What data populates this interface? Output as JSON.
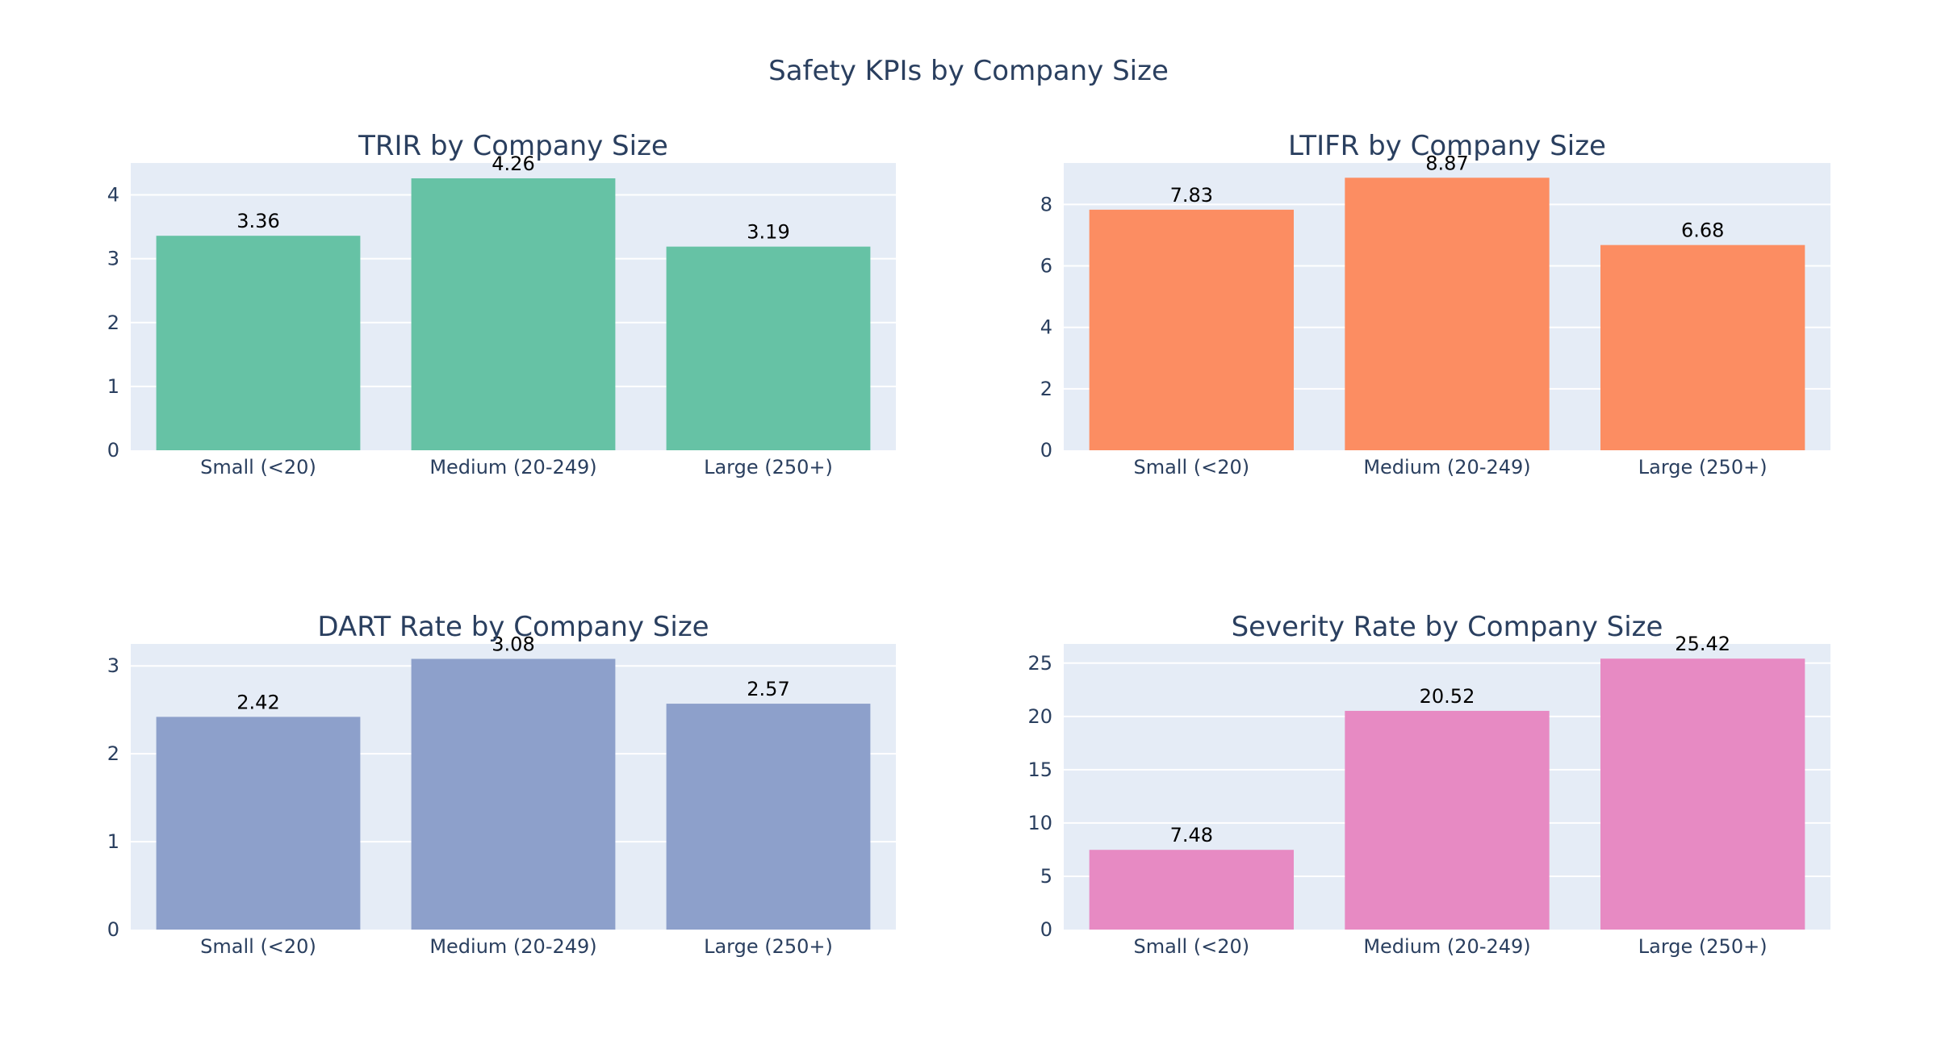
{
  "chart_data": {
    "title": "Safety KPIs by Company Size",
    "type": "bar",
    "grid": true,
    "legend": "none",
    "subplots": [
      {
        "title": "TRIR by Company Size",
        "type": "bar",
        "color": "#66c2a5",
        "categories": [
          "Small (<20)",
          "Medium (20-249)",
          "Large (250+)"
        ],
        "values": [
          3.36,
          4.26,
          3.19
        ],
        "value_labels": [
          "3.36",
          "4.26",
          "3.19"
        ],
        "ylim": [
          0,
          4.5
        ],
        "yticks": [
          0,
          1,
          2,
          3,
          4
        ]
      },
      {
        "title": "LTIFR by Company Size",
        "type": "bar",
        "color": "#fc8d62",
        "categories": [
          "Small (<20)",
          "Medium (20-249)",
          "Large (250+)"
        ],
        "values": [
          7.83,
          8.87,
          6.68
        ],
        "value_labels": [
          "7.83",
          "8.87",
          "6.68"
        ],
        "ylim": [
          0,
          9.35
        ],
        "yticks": [
          0,
          2,
          4,
          6,
          8
        ]
      },
      {
        "title": "DART Rate by Company Size",
        "type": "bar",
        "color": "#8da0cb",
        "categories": [
          "Small (<20)",
          "Medium (20-249)",
          "Large (250+)"
        ],
        "values": [
          2.42,
          3.08,
          2.57
        ],
        "value_labels": [
          "2.42",
          "3.08",
          "2.57"
        ],
        "ylim": [
          0,
          3.25
        ],
        "yticks": [
          0,
          1,
          2,
          3
        ]
      },
      {
        "title": "Severity Rate by Company Size",
        "type": "bar",
        "color": "#e78ac3",
        "categories": [
          "Small (<20)",
          "Medium (20-249)",
          "Large (250+)"
        ],
        "values": [
          7.48,
          20.52,
          25.42
        ],
        "value_labels": [
          "7.48",
          "20.52",
          "25.42"
        ],
        "ylim": [
          0,
          26.8
        ],
        "yticks": [
          0,
          5,
          10,
          15,
          20,
          25
        ]
      }
    ]
  }
}
